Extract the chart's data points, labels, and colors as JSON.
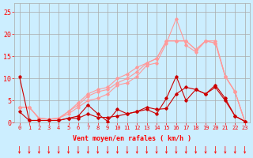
{
  "x": [
    0,
    1,
    2,
    3,
    4,
    5,
    6,
    7,
    8,
    9,
    10,
    11,
    12,
    13,
    14,
    15,
    16,
    17,
    18,
    19,
    20,
    21,
    22,
    23
  ],
  "line1": [
    10.5,
    0.5,
    0.5,
    0.5,
    0.5,
    1.0,
    1.0,
    2.0,
    1.2,
    1.2,
    1.5,
    2.0,
    2.5,
    3.5,
    3.0,
    3.2,
    6.5,
    8.0,
    7.5,
    6.5,
    8.5,
    5.5,
    1.5,
    0.3
  ],
  "line2": [
    2.5,
    0.5,
    0.5,
    0.5,
    0.5,
    1.0,
    1.5,
    4.0,
    2.0,
    0.3,
    3.0,
    2.0,
    2.5,
    3.0,
    2.0,
    5.5,
    10.5,
    5.0,
    7.5,
    6.5,
    8.0,
    5.0,
    1.5,
    0.3
  ],
  "line3": [
    3.5,
    3.5,
    1.0,
    0.8,
    1.0,
    2.0,
    3.5,
    5.0,
    5.5,
    6.5,
    8.5,
    9.0,
    10.5,
    13.0,
    13.5,
    18.0,
    23.5,
    17.5,
    16.0,
    18.5,
    18.5,
    10.5,
    7.0,
    0.3
  ],
  "line4": [
    3.5,
    3.5,
    1.0,
    0.8,
    1.0,
    2.5,
    4.0,
    6.0,
    7.0,
    7.5,
    9.0,
    10.0,
    11.5,
    13.5,
    14.5,
    18.5,
    18.5,
    18.5,
    16.5,
    18.5,
    18.0,
    10.5,
    7.0,
    0.3
  ],
  "line5": [
    3.5,
    3.5,
    1.0,
    0.8,
    1.0,
    2.5,
    4.5,
    6.5,
    7.5,
    8.0,
    10.0,
    11.0,
    12.5,
    13.5,
    14.5,
    18.5,
    18.5,
    18.5,
    16.5,
    18.5,
    18.0,
    10.5,
    7.0,
    0.3
  ],
  "color_dark": "#cc0000",
  "color_light": "#ff9999",
  "background": "#cceeff",
  "grid_color": "#aaaaaa",
  "xlabel": "Vent moyen/en rafales ( km/h )",
  "ylabel_ticks": [
    0,
    5,
    10,
    15,
    20,
    25
  ],
  "ylim": [
    0,
    27
  ],
  "xlim": [
    -0.5,
    23.5
  ]
}
